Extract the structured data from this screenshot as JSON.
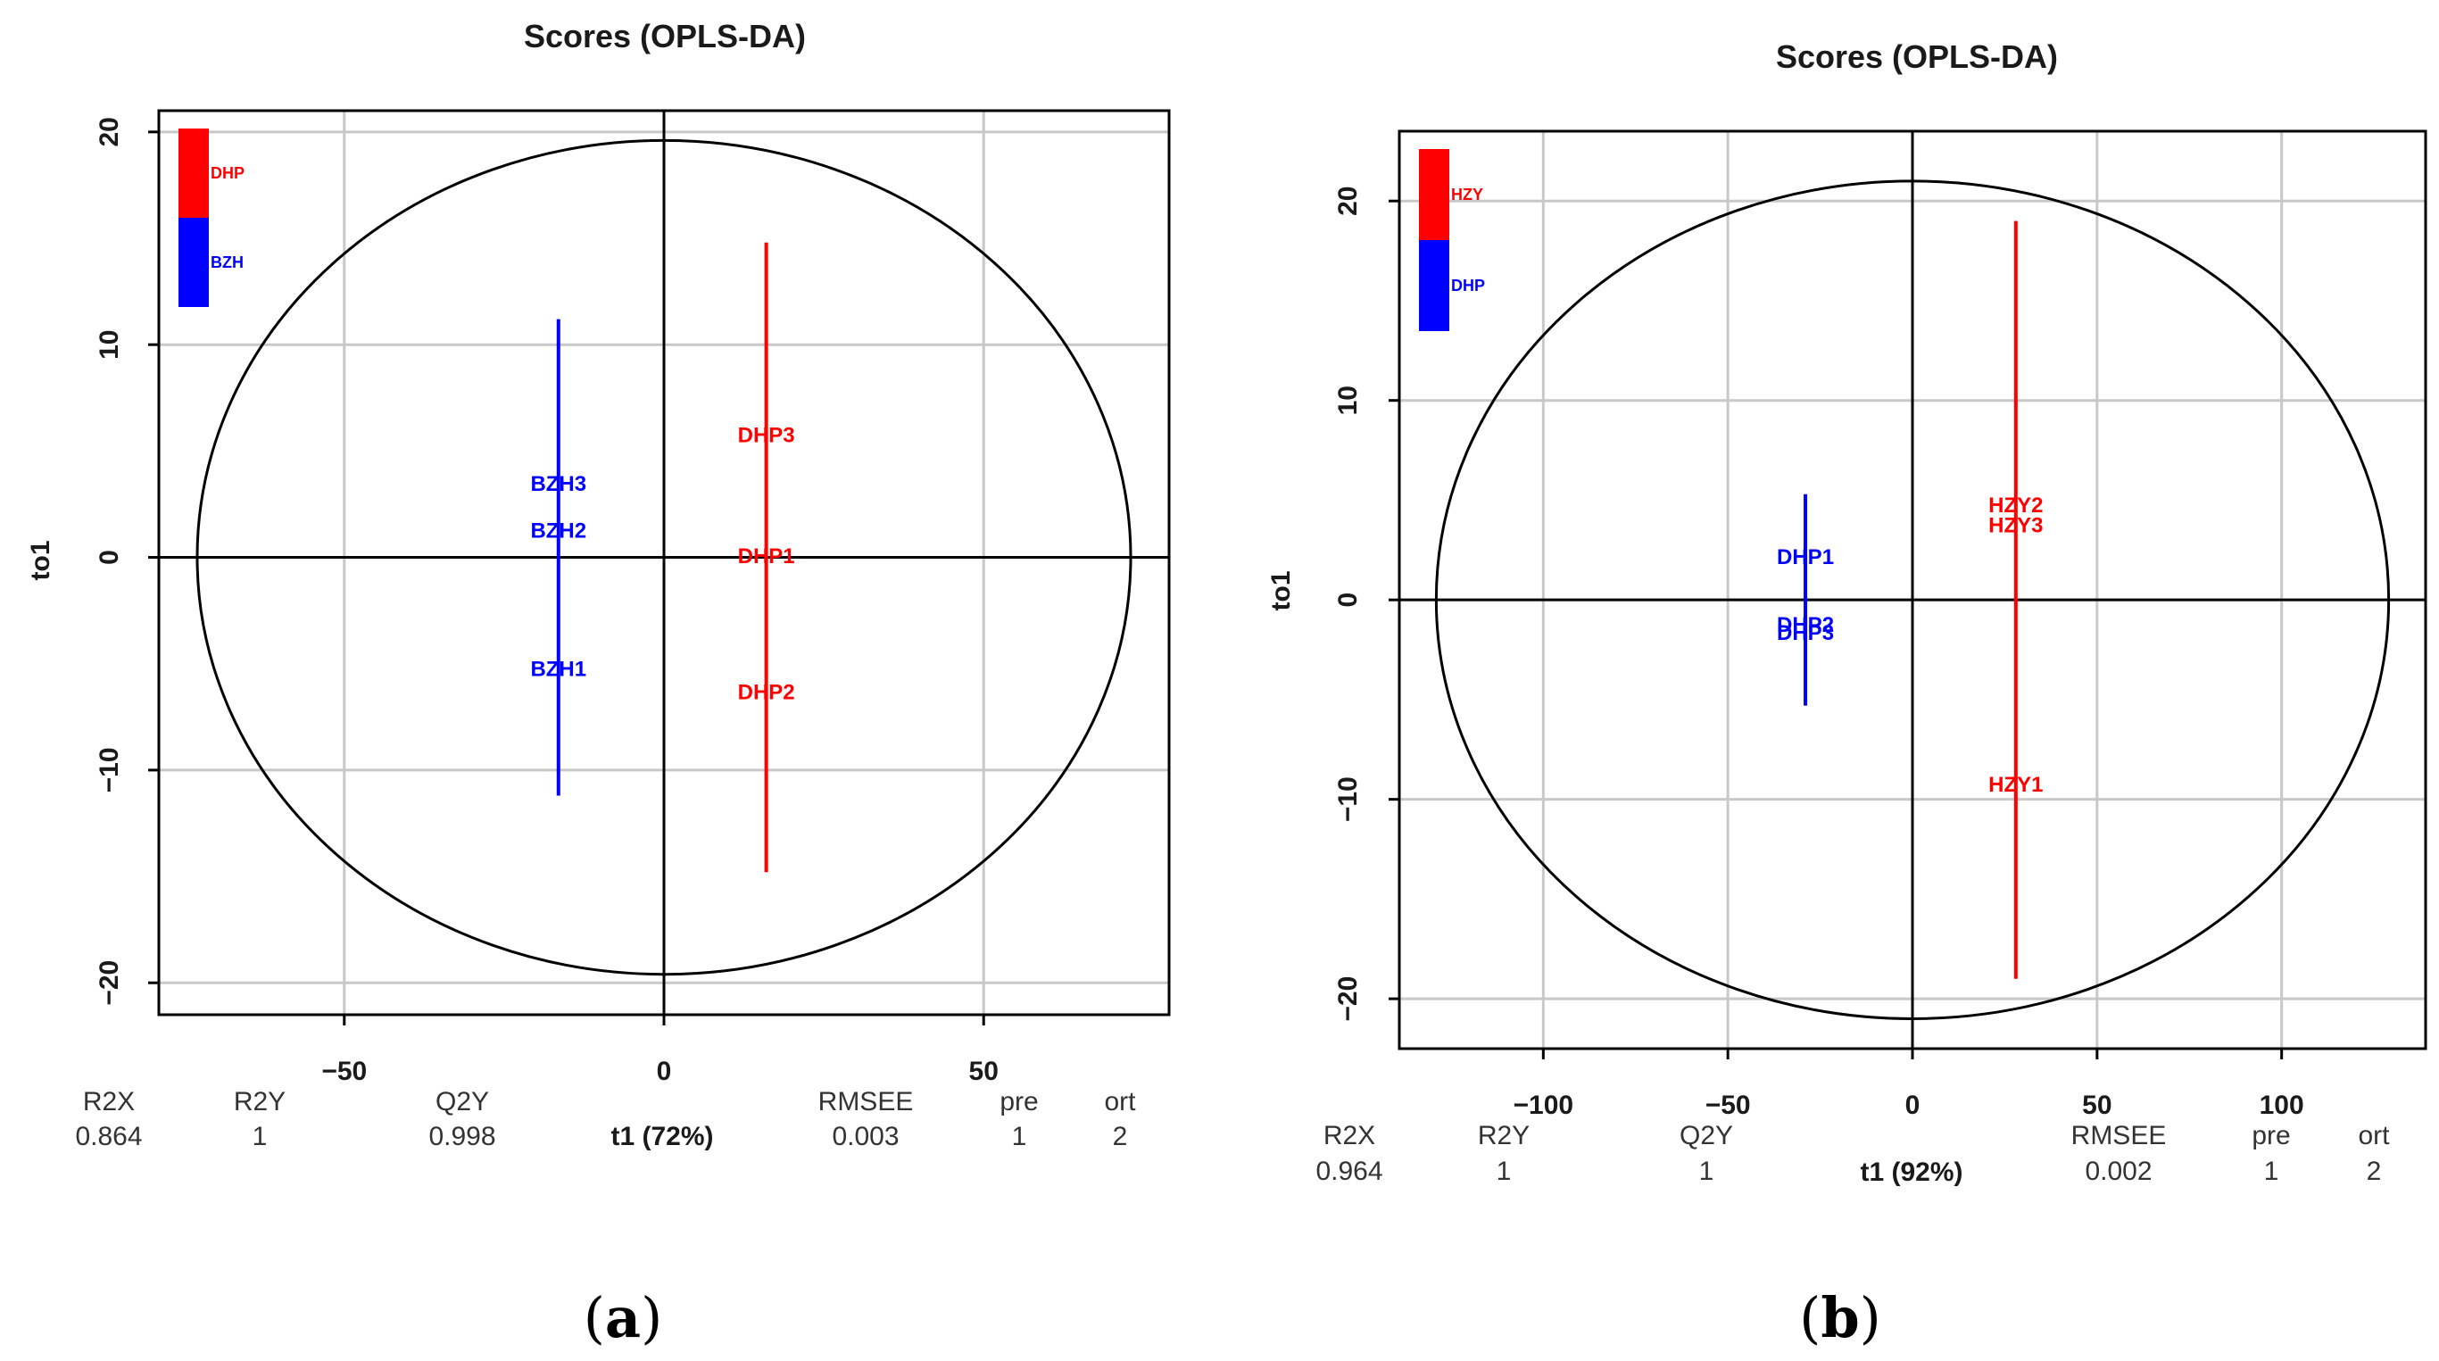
{
  "panels": [
    {
      "id": "a",
      "label": "a",
      "stats_header": [
        "R2X",
        "R2Y",
        "Q2Y",
        "RMSEE",
        "pre",
        "ort"
      ],
      "stats_values": [
        "0.864",
        "1",
        "0.998",
        "0.003",
        "1",
        "2"
      ]
    },
    {
      "id": "b",
      "label": "b",
      "stats_header": [
        "R2X",
        "R2Y",
        "Q2Y",
        "RMSEE",
        "pre",
        "ort"
      ],
      "stats_values": [
        "0.964",
        "1",
        "1",
        "0.002",
        "1",
        "2"
      ]
    }
  ],
  "chart_data": [
    {
      "type": "scatter",
      "title": "Scores (OPLS-DA)",
      "xlabel": "t1 (72%)",
      "ylabel": "to1",
      "xlim": [
        -79,
        79
      ],
      "ylim": [
        -21.5,
        21.0
      ],
      "xticks": [
        -50,
        0,
        50
      ],
      "yticks": [
        -20,
        -10,
        0,
        10,
        20
      ],
      "xtick_labels": [
        "−50",
        "0",
        "50"
      ],
      "ytick_labels": [
        "−20",
        "−10",
        "0",
        "10",
        "20"
      ],
      "grid": true,
      "ellipse": {
        "rx": 73,
        "ry": 19.6
      },
      "legend": {
        "position": "top-left",
        "entries": [
          {
            "label": "DHP",
            "color": "#ff0000"
          },
          {
            "label": "BZH",
            "color": "#0000ff"
          }
        ]
      },
      "series": [
        {
          "name": "BZH",
          "color": "#0000ff",
          "x": -16.5,
          "segment": [
            -11.2,
            11.2
          ],
          "points": [
            {
              "label": "BZH3",
              "y": 3.5
            },
            {
              "label": "BZH2",
              "y": 1.3
            },
            {
              "label": "BZH1",
              "y": -5.2
            }
          ]
        },
        {
          "name": "DHP",
          "color": "#ff0000",
          "x": 16,
          "segment": [
            -14.8,
            14.8
          ],
          "points": [
            {
              "label": "DHP3",
              "y": 5.8
            },
            {
              "label": "DHP1",
              "y": 0.1
            },
            {
              "label": "DHP2",
              "y": -6.3
            }
          ]
        }
      ]
    },
    {
      "type": "scatter",
      "title": "Scores (OPLS-DA)",
      "xlabel": "t1 (92%)",
      "ylabel": "to1",
      "xlim": [
        -139,
        139
      ],
      "ylim": [
        -22.5,
        23.5
      ],
      "xticks": [
        -100,
        -50,
        0,
        50,
        100
      ],
      "yticks": [
        -20,
        -10,
        0,
        10,
        20
      ],
      "xtick_labels": [
        "−100",
        "−50",
        "0",
        "50",
        "100"
      ],
      "ytick_labels": [
        "−20",
        "−10",
        "0",
        "10",
        "20"
      ],
      "grid": true,
      "ellipse": {
        "rx": 129,
        "ry": 21
      },
      "legend": {
        "position": "top-left",
        "entries": [
          {
            "label": "HZY",
            "color": "#ff0000"
          },
          {
            "label": "DHP",
            "color": "#0000ff"
          }
        ]
      },
      "series": [
        {
          "name": "DHP",
          "color": "#0000ff",
          "x": -29,
          "segment": [
            -5.3,
            5.3
          ],
          "points": [
            {
              "label": "DHP1",
              "y": 2.2
            },
            {
              "label": "DHP2",
              "y": -1.2
            },
            {
              "label": "DHP3",
              "y": -1.6
            }
          ]
        },
        {
          "name": "HZY",
          "color": "#ff0000",
          "x": 28,
          "segment": [
            -19,
            19
          ],
          "points": [
            {
              "label": "HZY2",
              "y": 4.8
            },
            {
              "label": "HZY3",
              "y": 3.8
            },
            {
              "label": "HZY1",
              "y": -9.2
            }
          ]
        }
      ]
    }
  ]
}
